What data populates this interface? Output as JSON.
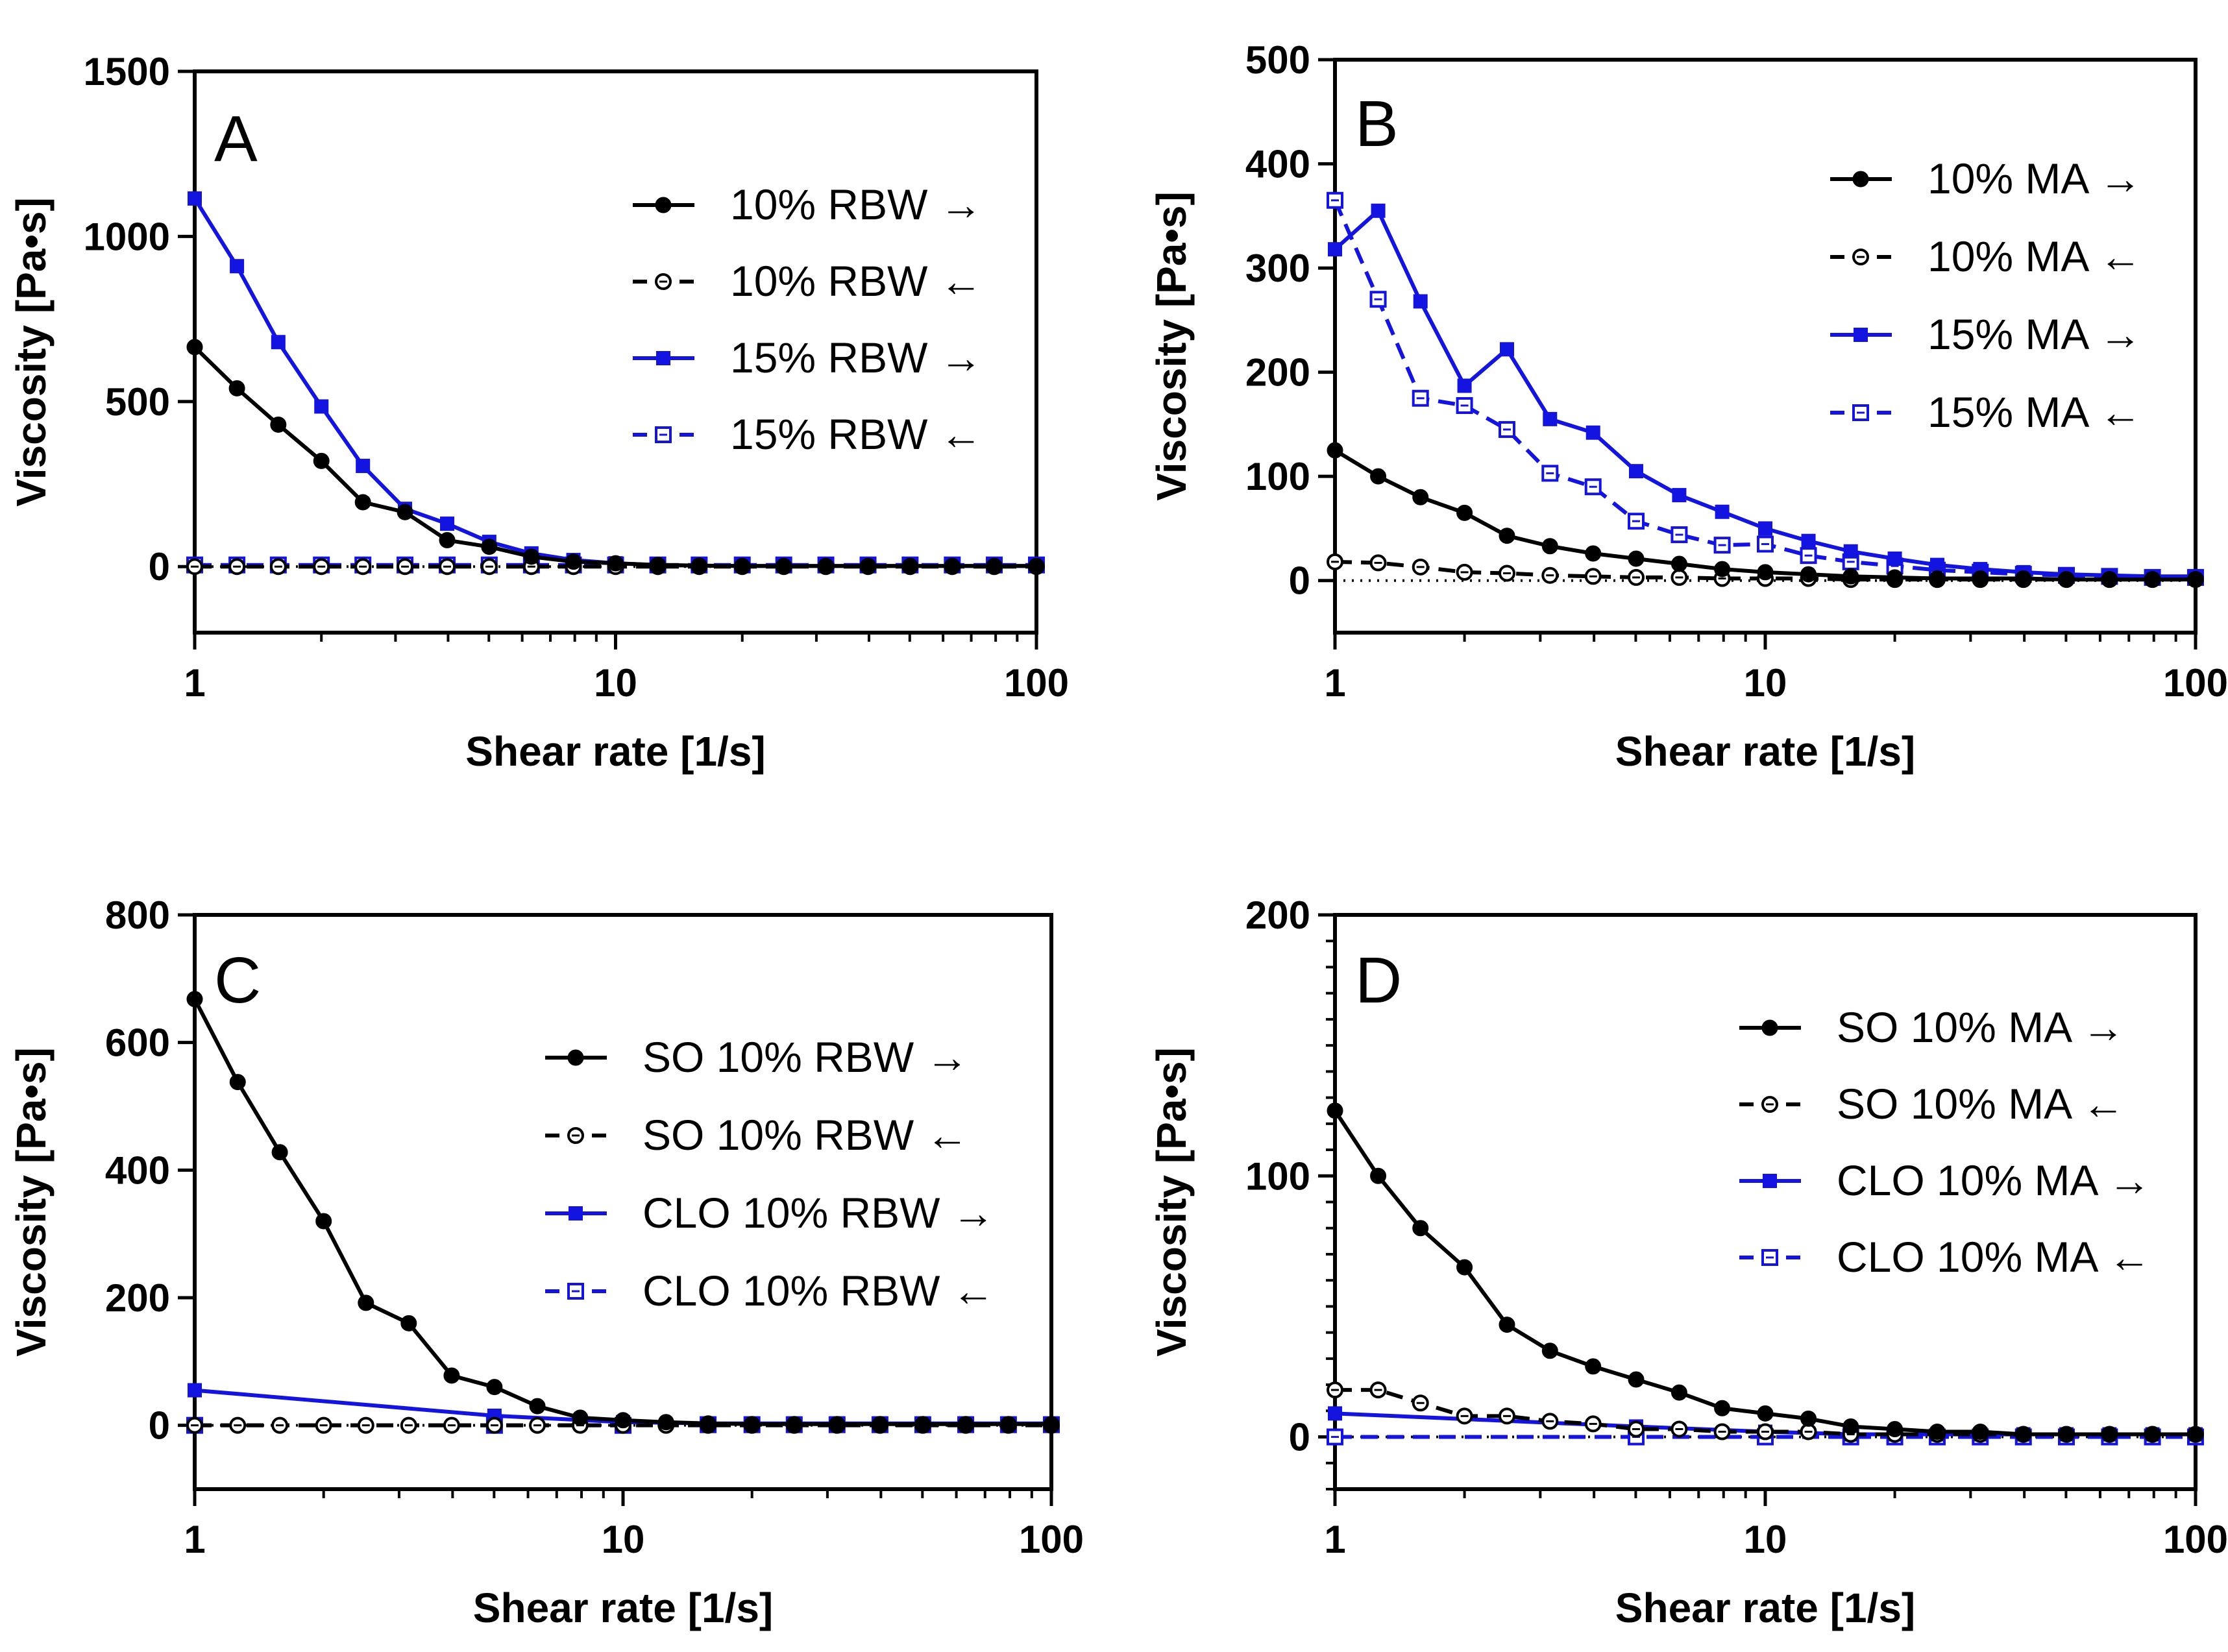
{
  "colors": {
    "black": "#000000",
    "blue": "#1414e0"
  },
  "chart_data": [
    {
      "panel": "A",
      "type": "line",
      "xscale": "log",
      "xlim": [
        1,
        100
      ],
      "ylim": [
        -200,
        1500
      ],
      "yticks": [
        0,
        500,
        1000,
        1500
      ],
      "ytick_labels": [
        "0",
        "500",
        "1000",
        "1500"
      ],
      "xticks": [
        1,
        10,
        100
      ],
      "xtick_labels": [
        "1",
        "10",
        "100"
      ],
      "xlabel": "Shear rate [1/s]",
      "ylabel": "Viscosity [Pa•s]",
      "legend_position": "top-right",
      "x": [
        1,
        1.26,
        1.58,
        2,
        2.51,
        3.16,
        3.98,
        5.01,
        6.31,
        7.94,
        10,
        12.6,
        15.8,
        20,
        25.1,
        31.6,
        39.8,
        50.1,
        63.1,
        79.4,
        100
      ],
      "series": [
        {
          "name": "10% RBW →",
          "color": "#000000",
          "marker": "circle",
          "filled": true,
          "dashed": false,
          "values": [
            665,
            540,
            430,
            320,
            195,
            165,
            80,
            60,
            30,
            15,
            10,
            5,
            3,
            2,
            2,
            2,
            2,
            2,
            2,
            2,
            2
          ]
        },
        {
          "name": "10% RBW ←",
          "color": "#000000",
          "marker": "circle",
          "filled": false,
          "dashed": true,
          "values": [
            0,
            0,
            0,
            0,
            0,
            0,
            0,
            0,
            0,
            0,
            0,
            0,
            0,
            0,
            0,
            0,
            0,
            0,
            0,
            0,
            0
          ]
        },
        {
          "name": "15% RBW →",
          "color": "#1414e0",
          "marker": "square",
          "filled": true,
          "dashed": false,
          "values": [
            1115,
            910,
            680,
            485,
            305,
            175,
            130,
            75,
            40,
            20,
            10,
            5,
            3,
            2,
            2,
            2,
            2,
            2,
            2,
            2,
            2
          ]
        },
        {
          "name": "15% RBW ←",
          "color": "#1414e0",
          "marker": "square",
          "filled": false,
          "dashed": true,
          "values": [
            5,
            5,
            5,
            5,
            5,
            5,
            5,
            5,
            5,
            5,
            5,
            5,
            5,
            5,
            5,
            5,
            5,
            5,
            5,
            5,
            5
          ]
        }
      ]
    },
    {
      "panel": "B",
      "type": "line",
      "xscale": "log",
      "xlim": [
        1,
        100
      ],
      "ylim": [
        -50,
        500
      ],
      "yticks": [
        0,
        100,
        200,
        300,
        400,
        500
      ],
      "ytick_labels": [
        "0",
        "100",
        "200",
        "300",
        "400",
        "500"
      ],
      "xticks": [
        1,
        10,
        100
      ],
      "xtick_labels": [
        "1",
        "10",
        "100"
      ],
      "xlabel": "Shear rate [1/s]",
      "ylabel": "Viscosity [Pa•s]",
      "legend_position": "top-right",
      "x": [
        1,
        1.26,
        1.58,
        2,
        2.51,
        3.16,
        3.98,
        5.01,
        6.31,
        7.94,
        10,
        12.6,
        15.8,
        20,
        25.1,
        31.6,
        39.8,
        50.1,
        63.1,
        79.4,
        100
      ],
      "series": [
        {
          "name": "10% MA →",
          "color": "#000000",
          "marker": "circle",
          "filled": true,
          "dashed": false,
          "values": [
            125,
            100,
            80,
            65,
            43,
            33,
            26,
            21,
            16,
            11,
            8,
            6,
            4,
            3,
            2,
            2,
            2,
            1,
            1,
            1,
            1
          ]
        },
        {
          "name": "10% MA ←",
          "color": "#000000",
          "marker": "circle",
          "filled": false,
          "dashed": true,
          "values": [
            18,
            17,
            13,
            8,
            7,
            5,
            4,
            3,
            3,
            2,
            2,
            2,
            1,
            1,
            1,
            1,
            1,
            1,
            1,
            1,
            1
          ]
        },
        {
          "name": "15% MA →",
          "color": "#1414e0",
          "marker": "square",
          "filled": true,
          "dashed": false,
          "values": [
            318,
            355,
            268,
            187,
            222,
            155,
            142,
            105,
            82,
            66,
            50,
            38,
            28,
            21,
            15,
            11,
            8,
            6,
            5,
            4,
            4
          ]
        },
        {
          "name": "15% MA ←",
          "color": "#1414e0",
          "marker": "square",
          "filled": false,
          "dashed": true,
          "values": [
            365,
            270,
            175,
            168,
            145,
            103,
            90,
            57,
            44,
            34,
            35,
            24,
            18,
            14,
            10,
            8,
            6,
            5,
            4,
            3,
            3
          ]
        }
      ]
    },
    {
      "panel": "C",
      "type": "line",
      "xscale": "log",
      "xlim": [
        1,
        100
      ],
      "ylim": [
        -100,
        800
      ],
      "yticks": [
        0,
        200,
        400,
        600,
        800
      ],
      "ytick_labels": [
        "0",
        "200",
        "400",
        "600",
        "800"
      ],
      "xticks": [
        1,
        10,
        100
      ],
      "xtick_labels": [
        "1",
        "10",
        "100"
      ],
      "xlabel": "Shear rate [1/s]",
      "ylabel": "Viscosity [Pa•s]",
      "legend_position": "center-right",
      "x": [
        1,
        1.26,
        1.58,
        2,
        2.51,
        3.16,
        3.98,
        5.01,
        6.31,
        7.94,
        10,
        12.6,
        15.8,
        20,
        25.1,
        31.6,
        39.8,
        50.1,
        63.1,
        79.4,
        100
      ],
      "series": [
        {
          "name": "SO 10% RBW →",
          "color": "#000000",
          "marker": "circle",
          "filled": true,
          "dashed": false,
          "values": [
            668,
            538,
            428,
            320,
            192,
            160,
            78,
            60,
            30,
            12,
            8,
            5,
            3,
            2,
            2,
            2,
            2,
            2,
            2,
            2,
            2
          ]
        },
        {
          "name": "SO 10% RBW ←",
          "color": "#000000",
          "marker": "circle",
          "filled": false,
          "dashed": true,
          "values": [
            0,
            0,
            0,
            0,
            0,
            0,
            0,
            0,
            0,
            0,
            0,
            0,
            0,
            0,
            0,
            0,
            0,
            0,
            0,
            0,
            0
          ]
        },
        {
          "name": "CLO 10% RBW →",
          "color": "#1414e0",
          "marker": "square",
          "filled": true,
          "dashed": false,
          "x": [
            1,
            5.01,
            10,
            15.8,
            20,
            25.1,
            31.6,
            39.8,
            50.1,
            63.1,
            79.4,
            100
          ],
          "values": [
            55,
            15,
            5,
            3,
            3,
            3,
            3,
            3,
            3,
            3,
            3,
            3
          ]
        },
        {
          "name": "CLO 10% RBW ←",
          "color": "#1414e0",
          "marker": "square",
          "filled": false,
          "dashed": true,
          "x": [
            1,
            5.01,
            10,
            15.8,
            20,
            25.1,
            31.6,
            39.8,
            50.1,
            63.1,
            79.4,
            100
          ],
          "values": [
            0,
            0,
            0,
            1,
            1,
            1,
            1,
            1,
            1,
            1,
            1,
            1
          ]
        }
      ]
    },
    {
      "panel": "D",
      "type": "line",
      "xscale": "log",
      "xlim": [
        1,
        100
      ],
      "ylim": [
        -20,
        200
      ],
      "yticks": [
        0,
        100,
        200
      ],
      "ytick_labels": [
        "0",
        "100",
        "200"
      ],
      "yminor_step": 10,
      "xticks": [
        1,
        10,
        100
      ],
      "xtick_labels": [
        "1",
        "10",
        "100"
      ],
      "xlabel": "Shear rate [1/s]",
      "ylabel": "Viscosity [Pa•s]",
      "legend_position": "center-right",
      "x": [
        1,
        1.26,
        1.58,
        2,
        2.51,
        3.16,
        3.98,
        5.01,
        6.31,
        7.94,
        10,
        12.6,
        15.8,
        20,
        25.1,
        31.6,
        39.8,
        50.1,
        63.1,
        79.4,
        100
      ],
      "series": [
        {
          "name": "SO 10% MA →",
          "color": "#000000",
          "marker": "circle",
          "filled": true,
          "dashed": false,
          "values": [
            125,
            100,
            80,
            65,
            43,
            33,
            27,
            22,
            17,
            11,
            9,
            7,
            4,
            3,
            2,
            2,
            1,
            1,
            1,
            1,
            1
          ]
        },
        {
          "name": "SO 10% MA ←",
          "color": "#000000",
          "marker": "circle",
          "filled": false,
          "dashed": true,
          "values": [
            18,
            18,
            13,
            8,
            8,
            6,
            5,
            3,
            3,
            2,
            2,
            2,
            1,
            1,
            1,
            1,
            1,
            1,
            1,
            1,
            1
          ]
        },
        {
          "name": "CLO 10% MA →",
          "color": "#1414e0",
          "marker": "square",
          "filled": true,
          "dashed": false,
          "x": [
            1,
            5.01,
            10,
            15.8,
            20,
            25.1,
            31.6,
            39.8,
            50.1,
            63.1,
            79.4,
            100
          ],
          "values": [
            9,
            4,
            2,
            1,
            1,
            1,
            1,
            1,
            1,
            1,
            1,
            1
          ]
        },
        {
          "name": "CLO 10% MA ←",
          "color": "#1414e0",
          "marker": "square",
          "filled": false,
          "dashed": true,
          "x": [
            1,
            5.01,
            10,
            15.8,
            20,
            25.1,
            31.6,
            39.8,
            50.1,
            63.1,
            79.4,
            100
          ],
          "values": [
            0,
            0,
            0,
            0,
            0,
            0,
            0,
            0,
            0,
            0,
            0,
            0
          ]
        }
      ]
    }
  ]
}
